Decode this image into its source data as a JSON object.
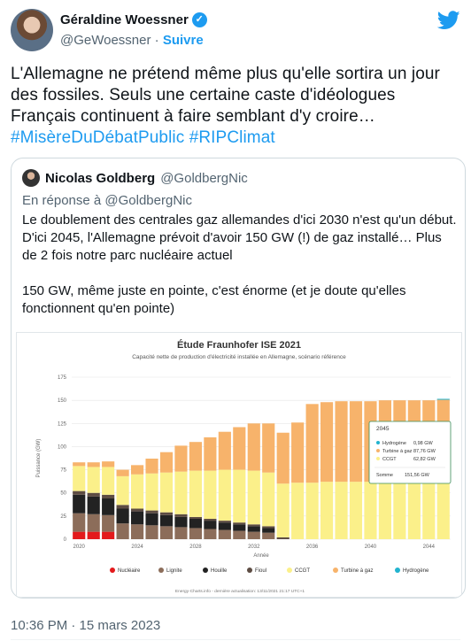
{
  "tweet": {
    "author_name": "Géraldine Woessner",
    "author_handle": "@GeWoessner",
    "separator": "·",
    "follow_label": "Suivre",
    "text": "L'Allemagne ne prétend même plus qu'elle sortira un jour des fossiles. Seuls une certaine caste d'idéologues Français continuent à faire semblant d'y croire…",
    "hashtags": "#MisèreDuDébatPublic #RIPClimat",
    "timestamp": "10:36 PM · 15 mars 2023"
  },
  "quote": {
    "author_name": "Nicolas Goldberg",
    "author_handle": "@GoldbergNic",
    "reply_to": "En réponse à @GoldbergNic",
    "paragraph1": "Le doublement des centrales gaz allemandes d'ici 2030 n'est qu'un début. D'ici 2045, l'Allemagne prévoit d'avoir 150 GW (!) de gaz installé… Plus de 2 fois notre parc nucléaire actuel",
    "paragraph2": "150 GW, même juste en pointe, c'est énorme (et je doute qu'elles fonctionnent qu'en pointe)"
  },
  "chart_data": {
    "type": "bar",
    "stacked": true,
    "title": "Étude Fraunhofer ISE 2021",
    "subtitle": "Capacité nette de production d'électricité installée en Allemagne, scénario référence",
    "ylabel": "Puissance (GW)",
    "xlabel": "Année",
    "ylim": [
      0,
      175
    ],
    "yticks": [
      0,
      25,
      50,
      75,
      100,
      125,
      150,
      175
    ],
    "xticks": [
      "2020",
      "2024",
      "2028",
      "2032",
      "2036",
      "2040",
      "2044"
    ],
    "x": [
      2020,
      2021,
      2022,
      2023,
      2024,
      2025,
      2026,
      2027,
      2028,
      2029,
      2030,
      2031,
      2032,
      2033,
      2034,
      2035,
      2036,
      2037,
      2038,
      2039,
      2040,
      2041,
      2042,
      2043,
      2044,
      2045
    ],
    "series": [
      {
        "name": "Nucléaire",
        "color": "#e31a1c",
        "values": [
          8,
          8,
          8,
          0,
          0,
          0,
          0,
          0,
          0,
          0,
          0,
          0,
          0,
          0,
          0,
          0,
          0,
          0,
          0,
          0,
          0,
          0,
          0,
          0,
          0,
          0
        ]
      },
      {
        "name": "Lignite",
        "color": "#8c6d5a",
        "values": [
          20,
          19,
          18,
          17,
          16,
          15,
          14,
          13,
          12,
          11,
          10,
          9,
          8,
          7,
          0,
          0,
          0,
          0,
          0,
          0,
          0,
          0,
          0,
          0,
          0,
          0
        ]
      },
      {
        "name": "Houille",
        "color": "#222222",
        "values": [
          20,
          19,
          18,
          16,
          14,
          13,
          12,
          11,
          10,
          9,
          8,
          7,
          6,
          5,
          0,
          0,
          0,
          0,
          0,
          0,
          0,
          0,
          0,
          0,
          0,
          0
        ]
      },
      {
        "name": "Fioul",
        "color": "#5d4c43",
        "values": [
          4,
          4,
          4,
          4,
          3,
          3,
          3,
          3,
          2,
          2,
          2,
          2,
          2,
          2,
          2,
          0,
          0,
          0,
          0,
          0,
          0,
          0,
          0,
          0,
          0,
          0
        ]
      },
      {
        "name": "CCGT",
        "color": "#fbf08a",
        "values": [
          27,
          28,
          30,
          31,
          37,
          40,
          43,
          46,
          50,
          52,
          55,
          57,
          58,
          58,
          58,
          61,
          61,
          62,
          62,
          62,
          62,
          62,
          62,
          62,
          62,
          62.82
        ]
      },
      {
        "name": "Turbine à gaz",
        "color": "#f7b36b",
        "values": [
          4,
          5,
          6,
          7,
          10,
          16,
          22,
          28,
          31,
          36,
          41,
          46,
          51,
          53,
          55,
          65,
          85,
          86,
          87,
          87,
          87,
          88,
          88,
          88,
          88,
          87.76
        ]
      },
      {
        "name": "Hydrogène",
        "color": "#21b3cf",
        "values": [
          0,
          0,
          0,
          0,
          0,
          0,
          0,
          0,
          0,
          0,
          0,
          0,
          0,
          0,
          0,
          0,
          0,
          0,
          0,
          0,
          0,
          0,
          0,
          0,
          0,
          0.98
        ]
      }
    ],
    "tooltip": {
      "year": "2045",
      "rows": [
        {
          "name": "Hydrogène",
          "value": "0,98 GW",
          "color": "#21b3cf"
        },
        {
          "name": "Turbine à gaz",
          "value": "87,76 GW",
          "color": "#f7b36b"
        },
        {
          "name": "CCGT",
          "value": "62,82 GW",
          "color": "#fbf08a"
        }
      ],
      "total_label": "Somme",
      "total_value": "151,56 GW"
    },
    "legend_position": "bottom",
    "credit": "Energy-Charts.info - dernière actualisation: 13/11/2021 21:17 UTC+1",
    "grid": true
  }
}
